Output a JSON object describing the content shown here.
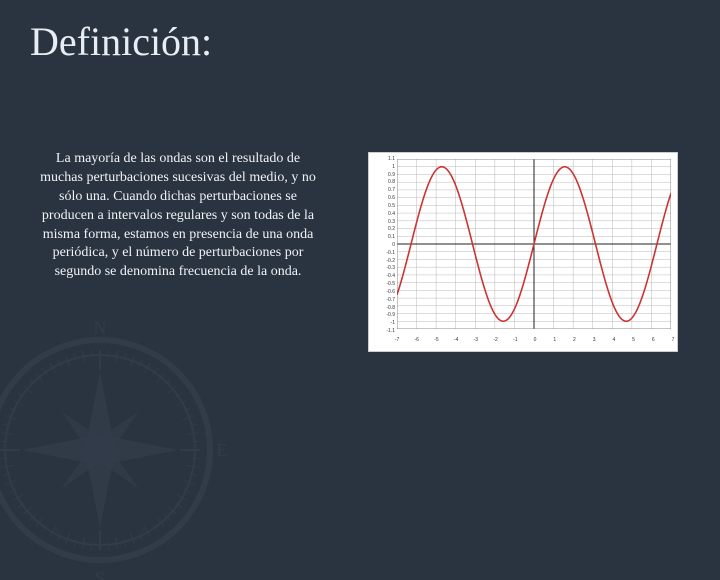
{
  "title": "Definición:",
  "body": "La mayoría de las ondas son el resultado de muchas perturbaciones sucesivas del medio, y no sólo una. Cuando dichas perturbaciones se producen a intervalos regulares y son todas de la misma forma, estamos en presencia de una onda periódica, y el número de perturbaciones por segundo se denomina frecuencia de la onda.",
  "slide": {
    "background_color": "#2a3340",
    "title_color": "#e8edf3",
    "text_color": "#f0f3f7",
    "title_fontsize": 40,
    "body_fontsize": 14
  },
  "chart": {
    "type": "line",
    "background_color": "#ffffff",
    "grid_color": "#b8b8b8",
    "axis_color": "#222222",
    "line_color": "#cc3333",
    "line_width": 1.6,
    "xlim": [
      -7,
      7
    ],
    "ylim": [
      -1.1,
      1.1
    ],
    "xtick_step": 1,
    "yticks": [
      -1.1,
      -1,
      -0.9,
      -0.8,
      -0.7,
      -0.6,
      -0.5,
      -0.4,
      -0.3,
      -0.2,
      -0.1,
      0,
      0.1,
      0.2,
      0.3,
      0.4,
      0.5,
      0.6,
      0.7,
      0.8,
      0.9,
      1,
      1.1
    ],
    "xticks": [
      -7,
      -6,
      -5,
      -4,
      -3,
      -2,
      -1,
      0,
      1,
      2,
      3,
      4,
      5,
      6,
      7
    ],
    "function": "sin(x)",
    "amplitude": 1,
    "period": 6.2832,
    "samples": 200,
    "tick_fontsize": 5
  },
  "decoration": {
    "type": "compass-rose",
    "color": "#4a5666",
    "opacity": 0.25
  }
}
